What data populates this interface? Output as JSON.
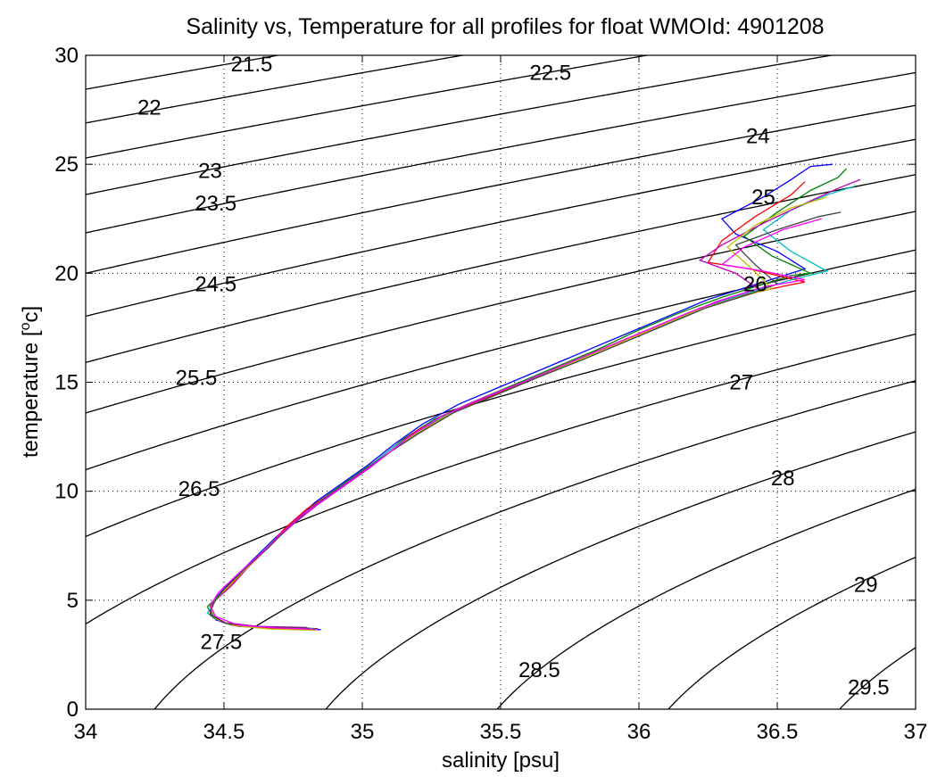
{
  "chart_data": {
    "type": "line",
    "title": "Salinity vs, Temperature for all profiles for float WMOId: 4901208",
    "xlabel": "salinity [psu]",
    "ylabel_main": "temperature [",
    "ylabel_sup": "o",
    "ylabel_end": "c]",
    "xlim": [
      34,
      37
    ],
    "ylim": [
      0,
      30
    ],
    "grid": true,
    "xticks": [
      34,
      34.5,
      35,
      35.5,
      36,
      36.5,
      37
    ],
    "xtick_labels": [
      "34",
      "34.5",
      "35",
      "35.5",
      "36",
      "36.5",
      "37"
    ],
    "yticks": [
      0,
      5,
      10,
      15,
      20,
      25,
      30
    ],
    "ytick_labels": [
      "0",
      "5",
      "10",
      "15",
      "20",
      "25",
      "30"
    ],
    "contours": [
      {
        "sigma": 21.5,
        "label": "21.5",
        "label_at": [
          34.6,
          29.6
        ]
      },
      {
        "sigma": 22,
        "label": "22",
        "label_at": [
          34.23,
          27.6
        ]
      },
      {
        "sigma": 22.5,
        "label": "22.5",
        "label_at": [
          35.68,
          29.2
        ]
      },
      {
        "sigma": 23,
        "label": "23",
        "label_at": [
          34.45,
          24.7
        ]
      },
      {
        "sigma": 23.5,
        "label": "23.5",
        "label_at": [
          34.47,
          23.2
        ]
      },
      {
        "sigma": 24,
        "label": "24",
        "label_at": [
          36.43,
          26.3
        ]
      },
      {
        "sigma": 24.5,
        "label": "24.5",
        "label_at": [
          34.47,
          19.5
        ]
      },
      {
        "sigma": 25,
        "label": "25",
        "label_at": [
          36.45,
          23.5
        ]
      },
      {
        "sigma": 25.5,
        "label": "25.5",
        "label_at": [
          34.4,
          15.2
        ]
      },
      {
        "sigma": 26,
        "label": "26",
        "label_at": [
          36.42,
          19.5
        ]
      },
      {
        "sigma": 26.5,
        "label": "26.5",
        "label_at": [
          34.41,
          10.1
        ]
      },
      {
        "sigma": 27,
        "label": "27",
        "label_at": [
          36.37,
          15.0
        ]
      },
      {
        "sigma": 27.5,
        "label": "27.5",
        "label_at": [
          34.49,
          3.1
        ]
      },
      {
        "sigma": 28,
        "label": "28",
        "label_at": [
          36.52,
          10.6
        ]
      },
      {
        "sigma": 28.5,
        "label": "28.5",
        "label_at": [
          35.64,
          1.8
        ]
      },
      {
        "sigma": 29,
        "label": "29",
        "label_at": [
          36.82,
          5.7
        ]
      },
      {
        "sigma": 29.5,
        "label": "29.5",
        "label_at": [
          36.83,
          1.0
        ]
      }
    ],
    "series": [
      {
        "color": "#0000ff",
        "points": [
          [
            34.85,
            3.65
          ],
          [
            34.7,
            3.7
          ],
          [
            34.55,
            3.8
          ],
          [
            34.47,
            4.1
          ],
          [
            34.45,
            4.6
          ],
          [
            34.47,
            5.1
          ],
          [
            34.52,
            5.8
          ],
          [
            34.6,
            6.8
          ],
          [
            34.68,
            7.8
          ],
          [
            34.75,
            8.6
          ],
          [
            34.83,
            9.5
          ],
          [
            34.92,
            10.3
          ],
          [
            35.02,
            11.2
          ],
          [
            35.12,
            12.2
          ],
          [
            35.22,
            13.1
          ],
          [
            35.35,
            14.0
          ],
          [
            35.5,
            14.8
          ],
          [
            35.65,
            15.6
          ],
          [
            35.8,
            16.4
          ],
          [
            35.95,
            17.2
          ],
          [
            36.1,
            18.0
          ],
          [
            36.25,
            18.8
          ],
          [
            36.4,
            19.4
          ],
          [
            36.5,
            19.8
          ],
          [
            36.6,
            20.2
          ],
          [
            36.5,
            21.0
          ],
          [
            36.35,
            21.8
          ],
          [
            36.3,
            22.5
          ],
          [
            36.45,
            23.5
          ],
          [
            36.55,
            24.3
          ],
          [
            36.62,
            24.9
          ],
          [
            36.7,
            25.0
          ]
        ]
      },
      {
        "color": "#008000",
        "points": [
          [
            34.84,
            3.7
          ],
          [
            34.68,
            3.75
          ],
          [
            34.53,
            3.85
          ],
          [
            34.46,
            4.2
          ],
          [
            34.44,
            4.7
          ],
          [
            34.48,
            5.2
          ],
          [
            34.54,
            6.0
          ],
          [
            34.62,
            7.0
          ],
          [
            34.7,
            8.0
          ],
          [
            34.77,
            8.8
          ],
          [
            34.85,
            9.6
          ],
          [
            34.95,
            10.5
          ],
          [
            35.05,
            11.4
          ],
          [
            35.15,
            12.4
          ],
          [
            35.26,
            13.3
          ],
          [
            35.4,
            14.1
          ],
          [
            35.55,
            14.9
          ],
          [
            35.7,
            15.7
          ],
          [
            35.85,
            16.5
          ],
          [
            36.0,
            17.4
          ],
          [
            36.15,
            18.2
          ],
          [
            36.3,
            18.9
          ],
          [
            36.45,
            19.5
          ],
          [
            36.55,
            19.9
          ],
          [
            36.62,
            20.0
          ],
          [
            36.48,
            20.8
          ],
          [
            36.38,
            21.7
          ],
          [
            36.5,
            22.8
          ],
          [
            36.62,
            23.8
          ],
          [
            36.72,
            24.4
          ],
          [
            36.75,
            24.8
          ]
        ]
      },
      {
        "color": "#ff0000",
        "points": [
          [
            34.83,
            3.65
          ],
          [
            34.66,
            3.72
          ],
          [
            34.52,
            3.9
          ],
          [
            34.45,
            4.3
          ],
          [
            34.45,
            4.8
          ],
          [
            34.5,
            5.4
          ],
          [
            34.57,
            6.3
          ],
          [
            34.65,
            7.3
          ],
          [
            34.72,
            8.3
          ],
          [
            34.8,
            9.2
          ],
          [
            34.9,
            10.0
          ],
          [
            35.0,
            10.9
          ],
          [
            35.1,
            11.9
          ],
          [
            35.2,
            12.8
          ],
          [
            35.32,
            13.6
          ],
          [
            35.47,
            14.4
          ],
          [
            35.62,
            15.2
          ],
          [
            35.77,
            16.0
          ],
          [
            35.92,
            16.8
          ],
          [
            36.08,
            17.6
          ],
          [
            36.22,
            18.4
          ],
          [
            36.38,
            19.0
          ],
          [
            36.52,
            19.4
          ],
          [
            36.6,
            19.6
          ],
          [
            36.4,
            20.2
          ],
          [
            36.25,
            20.5
          ],
          [
            36.3,
            21.5
          ],
          [
            36.42,
            22.6
          ],
          [
            36.55,
            23.6
          ],
          [
            36.6,
            24.2
          ]
        ]
      },
      {
        "color": "#00bfbf",
        "points": [
          [
            34.82,
            3.7
          ],
          [
            34.64,
            3.78
          ],
          [
            34.5,
            3.95
          ],
          [
            34.44,
            4.4
          ],
          [
            34.46,
            4.9
          ],
          [
            34.51,
            5.6
          ],
          [
            34.59,
            6.6
          ],
          [
            34.66,
            7.5
          ],
          [
            34.74,
            8.4
          ],
          [
            34.82,
            9.3
          ],
          [
            34.91,
            10.1
          ],
          [
            35.01,
            11.0
          ],
          [
            35.11,
            12.0
          ],
          [
            35.22,
            12.9
          ],
          [
            35.35,
            13.8
          ],
          [
            35.5,
            14.6
          ],
          [
            35.66,
            15.4
          ],
          [
            35.81,
            16.2
          ],
          [
            35.96,
            17.0
          ],
          [
            36.12,
            17.8
          ],
          [
            36.27,
            18.6
          ],
          [
            36.42,
            19.2
          ],
          [
            36.55,
            19.7
          ],
          [
            36.68,
            20.1
          ],
          [
            36.55,
            21.0
          ],
          [
            36.45,
            22.0
          ],
          [
            36.55,
            22.9
          ],
          [
            36.68,
            23.6
          ],
          [
            36.78,
            24.0
          ]
        ]
      },
      {
        "color": "#bf00bf",
        "points": [
          [
            34.8,
            3.75
          ],
          [
            34.62,
            3.8
          ],
          [
            34.49,
            4.0
          ],
          [
            34.45,
            4.5
          ],
          [
            34.47,
            5.0
          ],
          [
            34.53,
            5.7
          ],
          [
            34.6,
            6.7
          ],
          [
            34.68,
            7.7
          ],
          [
            34.76,
            8.6
          ],
          [
            34.84,
            9.4
          ],
          [
            34.93,
            10.2
          ],
          [
            35.03,
            11.1
          ],
          [
            35.13,
            12.1
          ],
          [
            35.24,
            13.0
          ],
          [
            35.37,
            13.9
          ],
          [
            35.52,
            14.7
          ],
          [
            35.68,
            15.5
          ],
          [
            35.83,
            16.3
          ],
          [
            35.98,
            17.1
          ],
          [
            36.13,
            17.9
          ],
          [
            36.28,
            18.7
          ],
          [
            36.43,
            19.3
          ],
          [
            36.35,
            20.0
          ],
          [
            36.22,
            20.6
          ],
          [
            36.3,
            21.3
          ],
          [
            36.45,
            22.3
          ],
          [
            36.6,
            23.2
          ],
          [
            36.72,
            23.9
          ],
          [
            36.8,
            24.3
          ]
        ]
      },
      {
        "color": "#bfbf00",
        "points": [
          [
            34.83,
            3.62
          ],
          [
            34.67,
            3.68
          ],
          [
            34.54,
            3.82
          ],
          [
            34.47,
            4.15
          ],
          [
            34.45,
            4.65
          ],
          [
            34.49,
            5.3
          ],
          [
            34.56,
            6.2
          ],
          [
            34.64,
            7.2
          ],
          [
            34.72,
            8.2
          ],
          [
            34.8,
            9.1
          ],
          [
            34.89,
            9.9
          ],
          [
            34.99,
            10.8
          ],
          [
            35.09,
            11.7
          ],
          [
            35.19,
            12.6
          ],
          [
            35.31,
            13.5
          ],
          [
            35.46,
            14.3
          ],
          [
            35.61,
            15.1
          ],
          [
            35.76,
            15.9
          ],
          [
            35.91,
            16.7
          ],
          [
            36.06,
            17.5
          ],
          [
            36.21,
            18.3
          ],
          [
            36.36,
            18.9
          ],
          [
            36.48,
            19.3
          ],
          [
            36.4,
            20.3
          ],
          [
            36.32,
            21.2
          ],
          [
            36.42,
            22.2
          ],
          [
            36.55,
            23.0
          ],
          [
            36.68,
            23.5
          ]
        ]
      },
      {
        "color": "#404040",
        "points": [
          [
            34.81,
            3.72
          ],
          [
            34.65,
            3.77
          ],
          [
            34.51,
            3.92
          ],
          [
            34.45,
            4.35
          ],
          [
            34.46,
            4.85
          ],
          [
            34.5,
            5.5
          ],
          [
            34.58,
            6.5
          ],
          [
            34.66,
            7.4
          ],
          [
            34.73,
            8.3
          ],
          [
            34.81,
            9.2
          ],
          [
            34.9,
            10.0
          ],
          [
            35.0,
            10.9
          ],
          [
            35.1,
            11.8
          ],
          [
            35.21,
            12.7
          ],
          [
            35.33,
            13.6
          ],
          [
            35.48,
            14.4
          ],
          [
            35.63,
            15.2
          ],
          [
            35.79,
            16.0
          ],
          [
            35.94,
            16.8
          ],
          [
            36.09,
            17.6
          ],
          [
            36.24,
            18.4
          ],
          [
            36.39,
            19.0
          ],
          [
            36.5,
            19.5
          ],
          [
            36.42,
            20.4
          ],
          [
            36.35,
            21.3
          ],
          [
            36.5,
            22.0
          ],
          [
            36.65,
            22.6
          ],
          [
            36.73,
            22.8
          ]
        ]
      },
      {
        "color": "#ff00ff",
        "points": [
          [
            34.84,
            3.66
          ],
          [
            34.69,
            3.73
          ],
          [
            34.55,
            3.86
          ],
          [
            34.47,
            4.25
          ],
          [
            34.45,
            4.75
          ],
          [
            34.48,
            5.35
          ],
          [
            34.55,
            6.2
          ],
          [
            34.63,
            7.1
          ],
          [
            34.71,
            8.1
          ],
          [
            34.78,
            8.9
          ],
          [
            34.87,
            9.7
          ],
          [
            34.97,
            10.6
          ],
          [
            35.07,
            11.5
          ],
          [
            35.17,
            12.5
          ],
          [
            35.28,
            13.4
          ],
          [
            35.42,
            14.2
          ],
          [
            35.58,
            15.0
          ],
          [
            35.73,
            15.8
          ],
          [
            35.88,
            16.6
          ],
          [
            36.03,
            17.4
          ],
          [
            36.18,
            18.2
          ],
          [
            36.33,
            18.9
          ],
          [
            36.46,
            19.4
          ],
          [
            36.6,
            19.7
          ],
          [
            36.45,
            20.1
          ],
          [
            36.3,
            20.4
          ],
          [
            36.38,
            21.2
          ],
          [
            36.52,
            22.0
          ],
          [
            36.66,
            22.5
          ]
        ]
      }
    ]
  }
}
